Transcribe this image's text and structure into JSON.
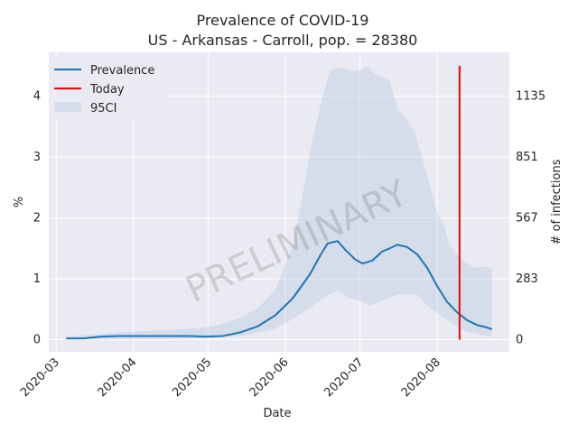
{
  "chart_data": {
    "type": "line",
    "title": "Prevalence of COVID-19",
    "subtitle": "US - Arkansas - Carroll, pop. = 28380",
    "xlabel": "Date",
    "ylabel": "%",
    "y2label": "# of infections",
    "watermark": "PRELIMINARY",
    "grid": true,
    "legend_position": "top-left",
    "background_color": "#eaeaf2",
    "x_ticks": [
      "2020-03",
      "2020-04",
      "2020-05",
      "2020-06",
      "2020-07",
      "2020-08"
    ],
    "y_ticks": [
      "0",
      "1",
      "2",
      "3",
      "4"
    ],
    "y2_ticks": [
      "0",
      "283",
      "567",
      "851",
      "1135"
    ],
    "y2_tick_values": [
      0,
      283,
      567,
      851,
      1135
    ],
    "xlim": [
      "2020-02-27",
      "2020-08-30"
    ],
    "ylim": [
      -0.2,
      4.72
    ],
    "today": "2020-08-10",
    "today_range": [
      0,
      4.5
    ],
    "series": [
      {
        "name": "Prevalence",
        "color": "#1f77b4",
        "points": [
          [
            "2020-03-05",
            0.02
          ],
          [
            "2020-03-12",
            0.02
          ],
          [
            "2020-03-19",
            0.05
          ],
          [
            "2020-03-26",
            0.06
          ],
          [
            "2020-04-02",
            0.06
          ],
          [
            "2020-04-09",
            0.06
          ],
          [
            "2020-04-16",
            0.06
          ],
          [
            "2020-04-23",
            0.06
          ],
          [
            "2020-04-30",
            0.05
          ],
          [
            "2020-05-07",
            0.06
          ],
          [
            "2020-05-14",
            0.12
          ],
          [
            "2020-05-21",
            0.22
          ],
          [
            "2020-05-28",
            0.4
          ],
          [
            "2020-06-04",
            0.68
          ],
          [
            "2020-06-11",
            1.08
          ],
          [
            "2020-06-15",
            1.38
          ],
          [
            "2020-06-18",
            1.58
          ],
          [
            "2020-06-22",
            1.62
          ],
          [
            "2020-06-25",
            1.48
          ],
          [
            "2020-06-29",
            1.32
          ],
          [
            "2020-07-02",
            1.25
          ],
          [
            "2020-07-06",
            1.3
          ],
          [
            "2020-07-10",
            1.45
          ],
          [
            "2020-07-13",
            1.5
          ],
          [
            "2020-07-16",
            1.56
          ],
          [
            "2020-07-20",
            1.52
          ],
          [
            "2020-07-24",
            1.4
          ],
          [
            "2020-07-28",
            1.18
          ],
          [
            "2020-08-01",
            0.88
          ],
          [
            "2020-08-05",
            0.62
          ],
          [
            "2020-08-09",
            0.45
          ],
          [
            "2020-08-13",
            0.32
          ],
          [
            "2020-08-17",
            0.24
          ],
          [
            "2020-08-21",
            0.2
          ],
          [
            "2020-08-23",
            0.17
          ]
        ]
      },
      {
        "name": "Today",
        "color": "#ff0000"
      },
      {
        "name": "95CI",
        "color": "#b0c4de",
        "lower": [
          [
            "2020-03-05",
            0.0
          ],
          [
            "2020-04-30",
            0.02
          ],
          [
            "2020-05-14",
            0.06
          ],
          [
            "2020-05-28",
            0.18
          ],
          [
            "2020-06-04",
            0.34
          ],
          [
            "2020-06-11",
            0.52
          ],
          [
            "2020-06-18",
            0.74
          ],
          [
            "2020-06-22",
            0.8
          ],
          [
            "2020-06-26",
            0.7
          ],
          [
            "2020-07-02",
            0.62
          ],
          [
            "2020-07-05",
            0.56
          ],
          [
            "2020-07-10",
            0.64
          ],
          [
            "2020-07-16",
            0.74
          ],
          [
            "2020-07-24",
            0.74
          ],
          [
            "2020-07-28",
            0.56
          ],
          [
            "2020-08-05",
            0.32
          ],
          [
            "2020-08-12",
            0.14
          ],
          [
            "2020-08-23",
            0.04
          ]
        ],
        "upper": [
          [
            "2020-03-05",
            0.05
          ],
          [
            "2020-03-20",
            0.1
          ],
          [
            "2020-04-05",
            0.14
          ],
          [
            "2020-04-20",
            0.17
          ],
          [
            "2020-04-30",
            0.2
          ],
          [
            "2020-05-07",
            0.26
          ],
          [
            "2020-05-14",
            0.36
          ],
          [
            "2020-05-21",
            0.52
          ],
          [
            "2020-05-28",
            0.82
          ],
          [
            "2020-06-04",
            1.55
          ],
          [
            "2020-06-08",
            2.4
          ],
          [
            "2020-06-12",
            3.3
          ],
          [
            "2020-06-16",
            4.0
          ],
          [
            "2020-06-19",
            4.42
          ],
          [
            "2020-06-22",
            4.48
          ],
          [
            "2020-06-26",
            4.44
          ],
          [
            "2020-06-29",
            4.4
          ],
          [
            "2020-07-04",
            4.48
          ],
          [
            "2020-07-07",
            4.36
          ],
          [
            "2020-07-13",
            4.26
          ],
          [
            "2020-07-16",
            3.8
          ],
          [
            "2020-07-19",
            3.66
          ],
          [
            "2020-07-23",
            3.4
          ],
          [
            "2020-07-28",
            2.7
          ],
          [
            "2020-08-01",
            2.1
          ],
          [
            "2020-08-04",
            1.85
          ],
          [
            "2020-08-06",
            1.54
          ],
          [
            "2020-08-12",
            1.28
          ],
          [
            "2020-08-16",
            1.18
          ],
          [
            "2020-08-21",
            1.2
          ],
          [
            "2020-08-23",
            1.18
          ]
        ]
      }
    ]
  }
}
